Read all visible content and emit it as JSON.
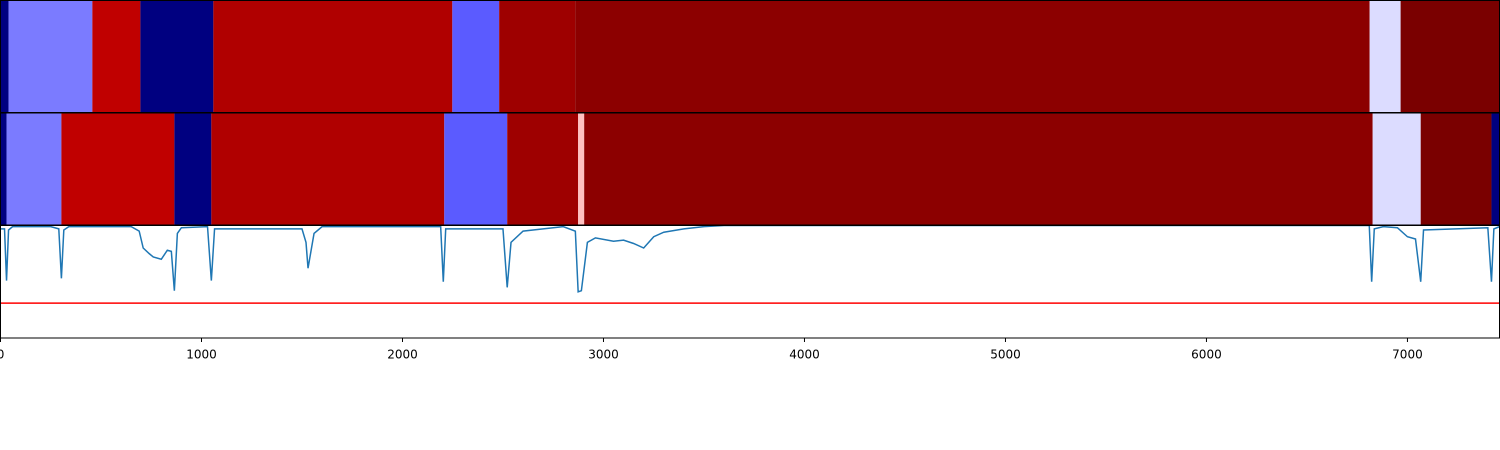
{
  "chart_data": {
    "type": "segmentation",
    "xlim": [
      0,
      7458
    ],
    "xticks": [
      0,
      1000,
      2000,
      3000,
      4000,
      5000,
      6000,
      7000
    ],
    "tracks": [
      {
        "segments": [
          {
            "start": 0,
            "end": 40,
            "color": "#000080"
          },
          {
            "start": 40,
            "end": 457,
            "color": "#7b7bff"
          },
          {
            "start": 457,
            "end": 696,
            "color": "#c00000"
          },
          {
            "start": 696,
            "end": 1059,
            "color": "#000080"
          },
          {
            "start": 1059,
            "end": 2248,
            "color": "#b00000"
          },
          {
            "start": 2248,
            "end": 2481,
            "color": "#5b5bff"
          },
          {
            "start": 2481,
            "end": 2859,
            "color": "#9e0000"
          },
          {
            "start": 2859,
            "end": 6812,
            "color": "#8c0000"
          },
          {
            "start": 6812,
            "end": 6966,
            "color": "#dcdcff"
          },
          {
            "start": 6966,
            "end": 7458,
            "color": "#7a0000"
          }
        ]
      },
      {
        "segments": [
          {
            "start": 0,
            "end": 30,
            "color": "#000080"
          },
          {
            "start": 30,
            "end": 303,
            "color": "#7b7bff"
          },
          {
            "start": 303,
            "end": 865,
            "color": "#c00000"
          },
          {
            "start": 865,
            "end": 1049,
            "color": "#000080"
          },
          {
            "start": 1049,
            "end": 2208,
            "color": "#b00000"
          },
          {
            "start": 2208,
            "end": 2521,
            "color": "#5b5bff"
          },
          {
            "start": 2521,
            "end": 2874,
            "color": "#9e0000"
          },
          {
            "start": 2874,
            "end": 2904,
            "color": "#ffc0c0"
          },
          {
            "start": 2904,
            "end": 6827,
            "color": "#8c0000"
          },
          {
            "start": 6827,
            "end": 7066,
            "color": "#dcdcff"
          },
          {
            "start": 7066,
            "end": 7418,
            "color": "#7a0000"
          },
          {
            "start": 7418,
            "end": 7458,
            "color": "#000080"
          }
        ]
      }
    ],
    "ylim": [
      0,
      1
    ],
    "line": {
      "color": "#1f77b4",
      "x": [
        0,
        20,
        30,
        40,
        60,
        250,
        290,
        303,
        315,
        340,
        650,
        690,
        710,
        740,
        760,
        800,
        830,
        850,
        865,
        880,
        900,
        1030,
        1049,
        1065,
        1500,
        1520,
        1530,
        1560,
        1600,
        1800,
        2190,
        2203,
        2215,
        2500,
        2521,
        2540,
        2600,
        2800,
        2860,
        2874,
        2890,
        2920,
        2960,
        3050,
        3100,
        3150,
        3200,
        3250,
        3300,
        3400,
        3500,
        3600,
        6810,
        6822,
        6835,
        6880,
        6950,
        7000,
        7040,
        7066,
        7080,
        7400,
        7418,
        7430,
        7458
      ],
      "values": [
        0.97,
        0.97,
        0.51,
        0.96,
        0.99,
        0.99,
        0.97,
        0.53,
        0.96,
        0.99,
        0.99,
        0.95,
        0.8,
        0.75,
        0.72,
        0.7,
        0.78,
        0.77,
        0.42,
        0.93,
        0.98,
        0.99,
        0.51,
        0.97,
        0.97,
        0.85,
        0.62,
        0.93,
        0.99,
        0.99,
        0.99,
        0.5,
        0.97,
        0.97,
        0.45,
        0.85,
        0.95,
        0.99,
        0.95,
        0.41,
        0.42,
        0.85,
        0.89,
        0.86,
        0.87,
        0.84,
        0.8,
        0.9,
        0.94,
        0.97,
        0.99,
        1.0,
        1.0,
        0.5,
        0.97,
        0.99,
        0.98,
        0.9,
        0.88,
        0.5,
        0.96,
        0.98,
        0.5,
        0.97,
        0.99
      ]
    },
    "threshold": {
      "value": 0.31,
      "color": "#ff0000"
    }
  }
}
